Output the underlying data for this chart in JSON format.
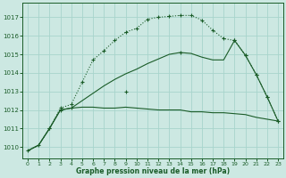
{
  "title": "Graphe pression niveau de la mer (hPa)",
  "bg": "#cce8e2",
  "grid_color": "#a8d4cc",
  "line_color": "#1a5c28",
  "xlim": [
    -0.5,
    23.5
  ],
  "ylim": [
    1009.4,
    1017.8
  ],
  "yticks": [
    1010,
    1011,
    1012,
    1013,
    1014,
    1015,
    1016,
    1017
  ],
  "xticks": [
    0,
    1,
    2,
    3,
    4,
    5,
    6,
    7,
    8,
    9,
    10,
    11,
    12,
    13,
    14,
    15,
    16,
    17,
    18,
    19,
    20,
    21,
    22,
    23
  ],
  "s1_x": [
    0,
    1,
    2,
    3,
    4,
    5,
    6,
    7,
    8,
    9,
    10,
    11,
    12,
    13,
    14,
    15,
    16,
    17,
    18,
    19,
    20,
    21,
    22,
    23
  ],
  "s1_y": [
    1009.8,
    1010.1,
    1011.0,
    1012.1,
    1012.3,
    1013.5,
    1014.7,
    1015.2,
    1015.75,
    1016.2,
    1016.4,
    1016.9,
    1017.0,
    1017.05,
    1017.1,
    1017.1,
    1016.85,
    1016.3,
    1015.85,
    1015.75,
    1014.95,
    1013.9,
    1012.7,
    1011.4
  ],
  "s2_x": [
    0,
    1,
    2,
    3,
    4,
    5,
    6,
    7,
    8,
    9,
    10,
    11,
    12,
    13,
    14,
    15,
    16,
    17,
    18,
    19,
    20,
    21,
    22,
    23
  ],
  "s2_y": [
    1009.8,
    1010.1,
    1011.0,
    1012.0,
    1012.1,
    1012.15,
    1012.15,
    1012.1,
    1012.1,
    1012.15,
    1012.1,
    1012.05,
    1012.0,
    1012.0,
    1012.0,
    1011.9,
    1011.9,
    1011.85,
    1011.85,
    1011.8,
    1011.75,
    1011.6,
    1011.5,
    1011.4
  ],
  "s3_x": [
    2,
    3,
    4,
    9,
    14,
    19,
    20,
    21,
    22,
    23
  ],
  "s3_y": [
    1011.0,
    1012.0,
    1012.1,
    1013.0,
    1015.1,
    1015.75,
    1014.95,
    1013.9,
    1012.7,
    1011.4
  ],
  "s3_full_x": [
    0,
    1,
    2,
    3,
    4,
    5,
    6,
    7,
    8,
    9,
    10,
    11,
    12,
    13,
    14,
    15,
    16,
    17,
    18,
    19,
    20,
    21,
    22,
    23
  ],
  "s3_full_y": [
    1009.8,
    1010.1,
    1011.0,
    1012.0,
    1012.1,
    1012.5,
    1012.9,
    1013.3,
    1013.65,
    1013.95,
    1014.2,
    1014.5,
    1014.75,
    1015.0,
    1015.1,
    1015.05,
    1014.85,
    1014.7,
    1014.7,
    1015.75,
    1014.95,
    1013.9,
    1012.7,
    1011.4
  ]
}
